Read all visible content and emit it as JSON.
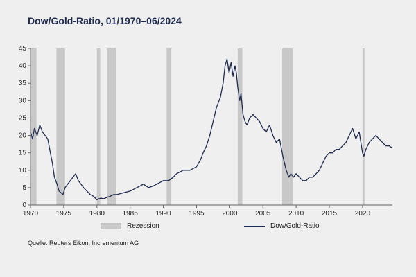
{
  "chart_data": {
    "type": "line",
    "title": "Dow/Gold-Ratio, 01/1970–06/2024",
    "source": "Quelle: Reuters Eikon, Incrementum AG",
    "xlim": [
      1970,
      2024.5
    ],
    "ylim": [
      0,
      45
    ],
    "x_ticks": [
      1970,
      1975,
      1980,
      1985,
      1990,
      1995,
      2000,
      2005,
      2010,
      2015,
      2020
    ],
    "y_ticks": [
      0,
      5,
      10,
      15,
      20,
      25,
      30,
      35,
      40,
      45
    ],
    "grid": false,
    "legend_position": "bottom",
    "legend": [
      "Rezession",
      "Dow/Gold-Ratio"
    ],
    "colors": {
      "line": "#1f2a4f",
      "recession": "#c8c8c8",
      "axis": "#666666",
      "background": "#efefef"
    },
    "recessions": [
      {
        "start": 1970.0,
        "end": 1970.9
      },
      {
        "start": 1973.9,
        "end": 1975.2
      },
      {
        "start": 1980.0,
        "end": 1980.5
      },
      {
        "start": 1981.5,
        "end": 1982.9
      },
      {
        "start": 1990.5,
        "end": 1991.2
      },
      {
        "start": 2001.2,
        "end": 2001.9
      },
      {
        "start": 2007.9,
        "end": 2009.5
      },
      {
        "start": 2020.0,
        "end": 2020.3
      }
    ],
    "series": [
      {
        "name": "Dow/Gold-Ratio",
        "x": [
          1970.0,
          1970.3,
          1970.6,
          1971.0,
          1971.4,
          1971.8,
          1972.2,
          1972.6,
          1973.0,
          1973.3,
          1973.6,
          1974.0,
          1974.3,
          1974.6,
          1974.9,
          1975.2,
          1975.6,
          1976.0,
          1976.4,
          1976.8,
          1977.2,
          1977.6,
          1978.0,
          1978.5,
          1979.0,
          1979.5,
          1980.0,
          1980.3,
          1980.6,
          1981.0,
          1981.5,
          1982.0,
          1982.5,
          1983.0,
          1984.0,
          1985.0,
          1986.0,
          1987.0,
          1987.8,
          1988.5,
          1989.0,
          1990.0,
          1990.8,
          1991.5,
          1992.0,
          1993.0,
          1994.0,
          1995.0,
          1995.6,
          1996.0,
          1996.5,
          1997.0,
          1997.5,
          1998.0,
          1998.6,
          1999.0,
          1999.3,
          1999.6,
          1999.9,
          2000.2,
          2000.5,
          2000.8,
          2001.0,
          2001.2,
          2001.5,
          2001.7,
          2002.0,
          2002.3,
          2002.6,
          2003.0,
          2003.5,
          2004.0,
          2004.5,
          2005.0,
          2005.5,
          2006.0,
          2006.5,
          2007.0,
          2007.5,
          2008.0,
          2008.5,
          2008.9,
          2009.2,
          2009.6,
          2010.0,
          2010.5,
          2011.0,
          2011.5,
          2012.0,
          2012.5,
          2013.0,
          2013.5,
          2014.0,
          2014.5,
          2015.0,
          2015.5,
          2016.0,
          2016.5,
          2017.0,
          2017.5,
          2018.0,
          2018.5,
          2019.0,
          2019.5,
          2020.0,
          2020.2,
          2020.5,
          2021.0,
          2021.5,
          2022.0,
          2022.5,
          2023.0,
          2023.5,
          2024.0,
          2024.4
        ],
        "values": [
          21,
          19,
          22,
          20,
          23,
          21,
          20,
          19,
          15,
          12,
          8,
          6,
          4,
          3.5,
          3,
          5,
          6,
          7,
          8,
          9,
          7,
          6,
          5,
          4,
          3,
          2.5,
          1.5,
          1.8,
          2,
          1.8,
          2.2,
          2.5,
          3,
          3,
          3.5,
          4,
          5,
          6,
          5,
          5.5,
          6,
          7,
          7,
          8,
          9,
          10,
          10,
          11,
          13,
          15,
          17,
          20,
          24,
          28,
          31,
          35,
          40,
          42,
          38,
          41,
          37,
          40,
          38,
          34,
          30,
          32,
          26,
          24,
          23,
          25,
          26,
          25,
          24,
          22,
          21,
          23,
          20,
          18,
          19,
          14,
          10,
          8,
          9,
          8,
          9,
          8,
          7,
          7,
          8,
          8,
          9,
          10,
          12,
          14,
          15,
          15,
          16,
          16,
          17,
          18,
          20,
          22,
          19,
          21,
          15,
          14,
          16,
          18,
          19,
          20,
          19,
          18,
          17,
          17,
          16.5
        ]
      }
    ]
  }
}
